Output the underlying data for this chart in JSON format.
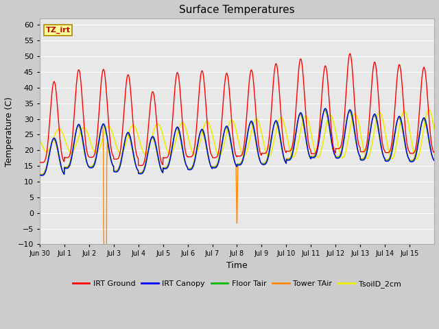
{
  "title": "Surface Temperatures",
  "xlabel": "Time",
  "ylabel": "Temperature (C)",
  "ylim": [
    -10,
    62
  ],
  "yticks": [
    -10,
    -5,
    0,
    5,
    10,
    15,
    20,
    25,
    30,
    35,
    40,
    45,
    50,
    55,
    60
  ],
  "annotation_text": "TZ_irt",
  "annotation_color": "#bb0000",
  "annotation_bg": "#ffff99",
  "annotation_border": "#aa8800",
  "series_colors": {
    "IRT Ground": "#ff0000",
    "IRT Canopy": "#0000ff",
    "Floor Tair": "#00bb00",
    "Tower TAir": "#ff8800",
    "TsoilD_2cm": "#eeee00"
  },
  "bg_color": "#e8e8e8",
  "grid_color": "#ffffff",
  "n_days": 16,
  "xtick_labels": [
    "Jun 30",
    "Jul 1",
    "Jul 2",
    "Jul 3",
    "Jul 4",
    "Jul 5",
    "Jul 6",
    "Jul 7",
    "Jul 8",
    "Jul 9",
    "Jul 10",
    "Jul 11",
    "Jul 12",
    "Jul 13",
    "Jul 14",
    "Jul 15"
  ],
  "figsize": [
    6.4,
    4.8
  ],
  "dpi": 100
}
